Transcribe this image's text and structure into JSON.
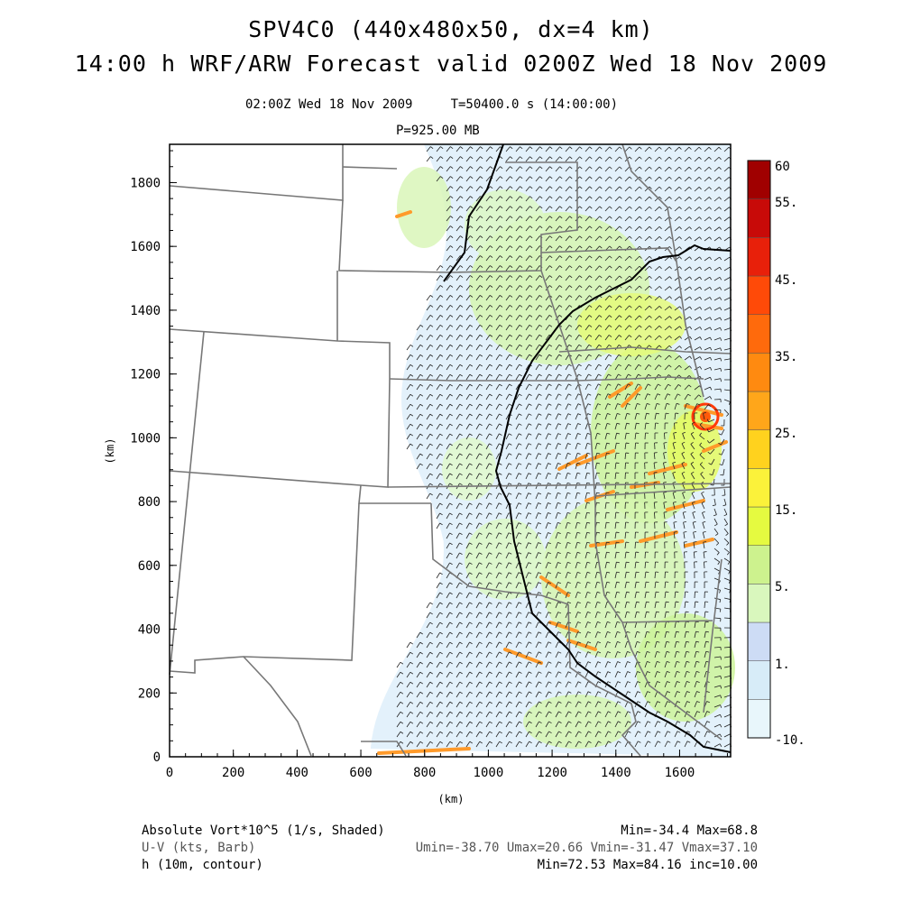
{
  "header": {
    "title": "SPV4C0 (440x480x50, dx=4 km)",
    "subtitle": "14:00 h WRF/ARW Forecast valid 0200Z Wed 18 Nov 2009",
    "time_line": "02:00Z Wed 18 Nov 2009     T=50400.0 s (14:00:00)",
    "level": "P=925.00 MB"
  },
  "chart_data": {
    "type": "heatmap",
    "xlabel": "(km)",
    "ylabel": "(km)",
    "xlim": [
      0,
      1760
    ],
    "ylim": [
      0,
      1920
    ],
    "xticks": [
      0,
      200,
      400,
      600,
      800,
      1000,
      1200,
      1400,
      1600
    ],
    "yticks": [
      0,
      200,
      400,
      600,
      800,
      1000,
      1200,
      1400,
      1600,
      1800
    ],
    "colorbar": {
      "levels": [
        -10,
        1,
        5,
        15,
        25,
        35,
        45,
        55,
        60
      ],
      "labels": [
        "60",
        "55.",
        "45.",
        "35.",
        "25.",
        "15.",
        "5.",
        "1.",
        "-10."
      ],
      "colors": [
        "#e8f6fb",
        "#d7ecf8",
        "#cddcf5",
        "#d9f7bd",
        "#cdf28e",
        "#e5fa40",
        "#fbf23a",
        "#ffd21e",
        "#ffa61a",
        "#ff8a10",
        "#ff6a0c",
        "#ff4a08",
        "#e8200a",
        "#c80a08",
        "#a00000"
      ]
    },
    "fields": [
      {
        "name": "Absolute Vort*10^5 (1/s, Shaded)",
        "stats": "Min=-34.4 Max=68.8"
      },
      {
        "name": "U-V (kts, Barb)",
        "stats": "Umin=-38.70 Umax=20.66 Vmin=-31.47 Vmax=37.10"
      },
      {
        "name": "h (10m, contour)",
        "stats": "Min=72.53 Max=84.16 inc=10.00"
      }
    ]
  }
}
